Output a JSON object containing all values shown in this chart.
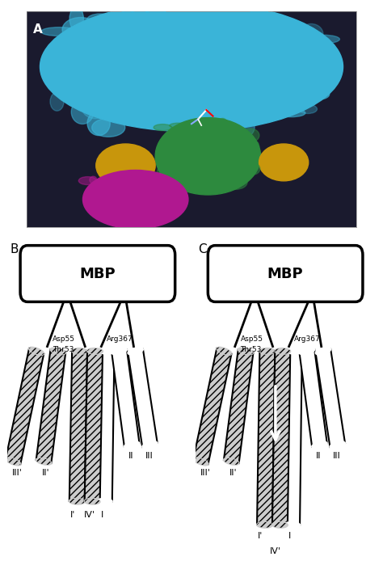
{
  "title_A": "A",
  "title_B": "B",
  "title_C": "C",
  "mbp_label": "MBP",
  "label_asp55": "Asp55",
  "label_thr53": "Thr53",
  "label_arg367": "Arg367",
  "bg_color": "#ffffff",
  "panel_A_bg": "#1a1a2e",
  "blue_color": "#3ab4d8",
  "green_color": "#2d8a3e",
  "yellow_color": "#c8960c",
  "magenta_color": "#b01890",
  "dark_helix_fill": "#aaaaaa",
  "dark_helix_hatch": "////",
  "white_helix_fill": "#ffffff",
  "outline_color": "#000000"
}
